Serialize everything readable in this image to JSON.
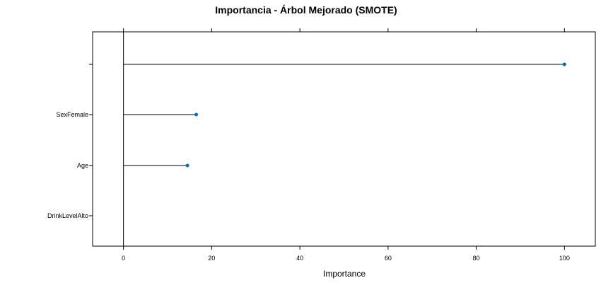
{
  "chart_data": {
    "type": "dot",
    "title": "Importancia - Árbol Mejorado (SMOTE)",
    "xlabel": "Importance",
    "ylabel": "",
    "xlim": [
      -7,
      107
    ],
    "xticks": [
      0,
      20,
      40,
      60,
      80,
      100
    ],
    "categories": [
      "",
      "SexFemale",
      "Age",
      "DrinkLevelAlto"
    ],
    "values": [
      100,
      16.5,
      14.5,
      0
    ],
    "colors": {
      "point": "#0072b2",
      "line": "#000000",
      "frame": "#000000"
    },
    "grid": false,
    "legend": "none"
  }
}
